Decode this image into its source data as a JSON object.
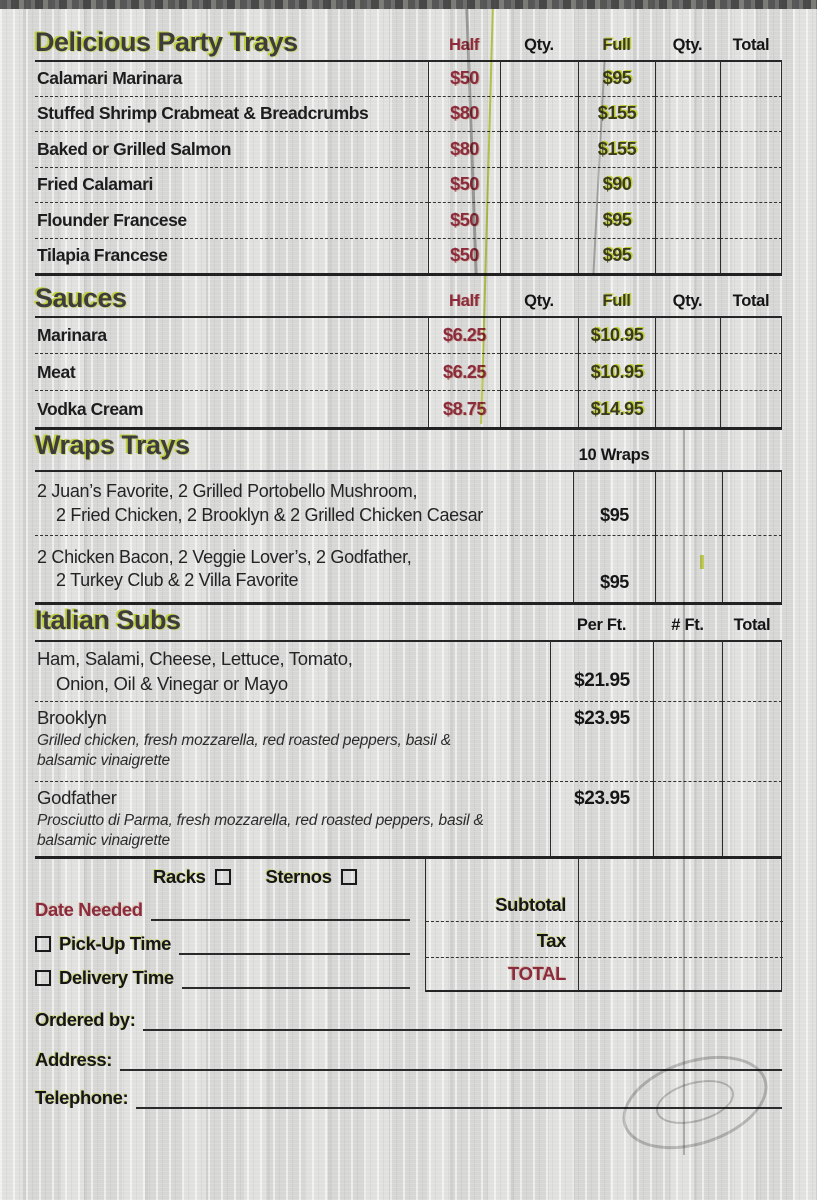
{
  "colors": {
    "maroon": "#8c2b3e",
    "chartreuse": "#c3d232",
    "ink": "#1d1d1d",
    "paper": "#d6d6d4"
  },
  "party_trays": {
    "title": "Delicious Party Trays",
    "headers": {
      "half": "Half",
      "qty1": "Qty.",
      "full": "Full",
      "qty2": "Qty.",
      "total": "Total"
    },
    "rows": [
      {
        "name": "Calamari Marinara",
        "half": "$50",
        "full": "$95"
      },
      {
        "name": "Stuffed Shrimp Crabmeat & Breadcrumbs",
        "half": "$80",
        "full": "$155"
      },
      {
        "name": "Baked or Grilled Salmon",
        "half": "$80",
        "full": "$155"
      },
      {
        "name": "Fried Calamari",
        "half": "$50",
        "full": "$90"
      },
      {
        "name": "Flounder Francese",
        "half": "$50",
        "full": "$95"
      },
      {
        "name": "Tilapia Francese",
        "half": "$50",
        "full": "$95"
      }
    ]
  },
  "sauces": {
    "title": "Sauces",
    "headers": {
      "half": "Half",
      "qty1": "Qty.",
      "full": "Full",
      "qty2": "Qty.",
      "total": "Total"
    },
    "rows": [
      {
        "name": "Marinara",
        "half": "$6.25",
        "full": "$10.95"
      },
      {
        "name": "Meat",
        "half": "$6.25",
        "full": "$10.95"
      },
      {
        "name": "Vodka Cream",
        "half": "$8.75",
        "full": "$14.95"
      }
    ]
  },
  "wraps": {
    "title": "Wraps Trays",
    "unit_label": "10 Wraps",
    "rows": [
      {
        "line1": "2 Juan’s Favorite, 2 Grilled Portobello Mushroom,",
        "line2": "2 Fried Chicken, 2 Brooklyn & 2 Grilled Chicken Caesar",
        "price": "$95"
      },
      {
        "line1": "2 Chicken Bacon, 2 Veggie Lover’s, 2 Godfather,",
        "line2": "2 Turkey Club & 2 Villa Favorite",
        "price": "$95"
      }
    ]
  },
  "subs": {
    "title": "Italian Subs",
    "headers": {
      "per_ft": "Per Ft.",
      "num_ft": "# Ft.",
      "total": "Total"
    },
    "rows": [
      {
        "line1": "Ham, Salami, Cheese, Lettuce, Tomato,",
        "line2": "Onion, Oil & Vinegar or Mayo",
        "price": "$21.95"
      },
      {
        "name": "Brooklyn",
        "desc": "Grilled chicken, fresh mozzarella, red roasted peppers, basil & balsamic vinaigrette",
        "price": "$23.95"
      },
      {
        "name": "Godfather",
        "desc": "Prosciutto di Parma, fresh mozzarella, red roasted peppers, basil & balsamic vinaigrette",
        "price": "$23.95"
      }
    ]
  },
  "order_form": {
    "racks_label": "Racks",
    "sternos_label": "Sternos",
    "date_needed_label": "Date Needed",
    "pickup_label": "Pick-Up Time",
    "delivery_label": "Delivery Time",
    "subtotal_label": "Subtotal",
    "tax_label": "Tax",
    "total_label": "TOTAL",
    "ordered_by_label": "Ordered by:",
    "address_label": "Address:",
    "telephone_label": "Telephone:"
  }
}
